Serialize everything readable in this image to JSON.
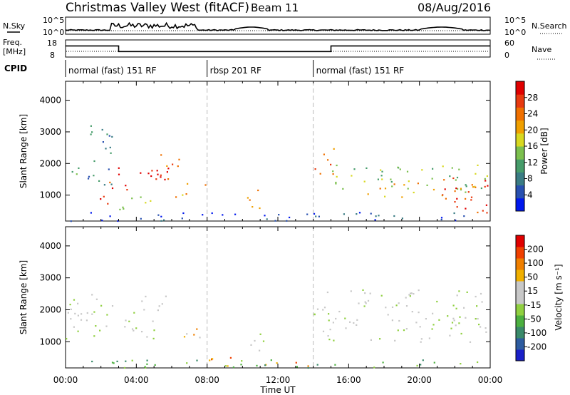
{
  "header": {
    "title": "Christmas Valley West (fitACF)",
    "beam": "Beam 11",
    "date": "08/Aug/2016"
  },
  "left_labels": {
    "nsky": "N.Sky",
    "freq_line1": "Freq.",
    "freq_line2": "[MHz]",
    "cpid": "CPID"
  },
  "right_labels": {
    "nsearch": "N.Search",
    "nave": "Nave"
  },
  "noise_axis": {
    "left_ticks": [
      "10^5",
      "10^0"
    ],
    "right_ticks": [
      "10^5",
      "10^0"
    ]
  },
  "freq_axis": {
    "left_ticks": [
      "18",
      "8"
    ],
    "right_ticks": [
      "60",
      "0"
    ]
  },
  "cpid_segments": [
    {
      "label": "normal (fast) 151 RF",
      "start_h": 0,
      "end_h": 8
    },
    {
      "label": "rbsp 201 RF",
      "start_h": 8,
      "end_h": 14
    },
    {
      "label": "normal (fast) 151 RF",
      "start_h": 14,
      "end_h": 24
    }
  ],
  "x_axis": {
    "label": "Time UT",
    "ticks": [
      "00:00",
      "04:00",
      "08:00",
      "12:00",
      "16:00",
      "20:00",
      "00:00"
    ]
  },
  "chart_data": [
    {
      "type": "heatmap",
      "panel": "power",
      "ylabel": "Slant Range [km]",
      "yticks": [
        1000,
        2000,
        3000,
        4000
      ],
      "ylim": [
        180,
        4600
      ],
      "xlim_hours": [
        0,
        24
      ],
      "colorbar": {
        "label": "Power [dB]",
        "ticks": [
          "28",
          "24",
          "20",
          "16",
          "12",
          "8",
          "4"
        ],
        "colors": [
          "#0018ee",
          "#2850b0",
          "#3a7c84",
          "#469c6a",
          "#7cc04e",
          "#d8d820",
          "#f0a000",
          "#f07000",
          "#e83a10",
          "#e00000"
        ]
      },
      "scatter_regions": [
        {
          "t0": 0.0,
          "t1": 1.0,
          "r0": 1500,
          "r1": 2100,
          "level": 3
        },
        {
          "t0": 0.9,
          "t1": 2.6,
          "r0": 1300,
          "r1": 3300,
          "level": 2
        },
        {
          "t0": 1.9,
          "t1": 2.8,
          "r0": 700,
          "r1": 1500,
          "level": 8
        },
        {
          "t0": 2.6,
          "t1": 5.8,
          "r0": 1150,
          "r1": 2050,
          "level": 9
        },
        {
          "t0": 5.2,
          "t1": 6.4,
          "r0": 1500,
          "r1": 2500,
          "level": 7
        },
        {
          "t0": 6.1,
          "t1": 7.9,
          "r0": 950,
          "r1": 1450,
          "level": 6
        },
        {
          "t0": 3.0,
          "t1": 5.5,
          "r0": 500,
          "r1": 1000,
          "level": 5
        },
        {
          "t0": 10.0,
          "t1": 11.2,
          "r0": 600,
          "r1": 1300,
          "level": 7
        },
        {
          "t0": 14.0,
          "t1": 15.2,
          "r0": 1600,
          "r1": 2700,
          "level": 7
        },
        {
          "t0": 15.0,
          "t1": 24.0,
          "r0": 1100,
          "r1": 2000,
          "level": 4
        },
        {
          "t0": 17.0,
          "t1": 23.0,
          "r0": 900,
          "r1": 1400,
          "level": 6
        },
        {
          "t0": 21.0,
          "t1": 24.0,
          "r0": 400,
          "r1": 1600,
          "level": 8
        },
        {
          "t0": 0.0,
          "t1": 24.0,
          "r0": 200,
          "r1": 500,
          "level": 1
        }
      ]
    },
    {
      "type": "heatmap",
      "panel": "velocity",
      "ylabel": "Slant Range [km]",
      "yticks": [
        1000,
        2000,
        3000,
        4000
      ],
      "ylim": [
        180,
        4600
      ],
      "xlim_hours": [
        0,
        24
      ],
      "colorbar": {
        "label": "Velocity [m s⁻¹]",
        "ticks": [
          "200",
          "100",
          "50",
          "15",
          "-15",
          "-50",
          "-100",
          "-200"
        ],
        "colors": [
          "#1a20c8",
          "#2e5ca0",
          "#3a8a6a",
          "#4cb040",
          "#90d040",
          "#c8c8c8",
          "#c8c8c8",
          "#f0b000",
          "#f08000",
          "#f04000",
          "#e00000"
        ]
      },
      "scatter_regions": [
        {
          "t0": 0.0,
          "t1": 5.8,
          "r0": 1100,
          "r1": 2500,
          "level": 5
        },
        {
          "t0": 6.1,
          "t1": 7.9,
          "r0": 950,
          "r1": 1450,
          "level": 7
        },
        {
          "t0": 10.0,
          "t1": 11.2,
          "r0": 600,
          "r1": 1300,
          "level": 5
        },
        {
          "t0": 14.0,
          "t1": 24.0,
          "r0": 1000,
          "r1": 2700,
          "level": 5
        },
        {
          "t0": 8.0,
          "t1": 14.0,
          "r0": 250,
          "r1": 550,
          "level": 8
        },
        {
          "t0": 0.0,
          "t1": 24.0,
          "r0": 200,
          "r1": 450,
          "level": 3
        }
      ]
    }
  ]
}
